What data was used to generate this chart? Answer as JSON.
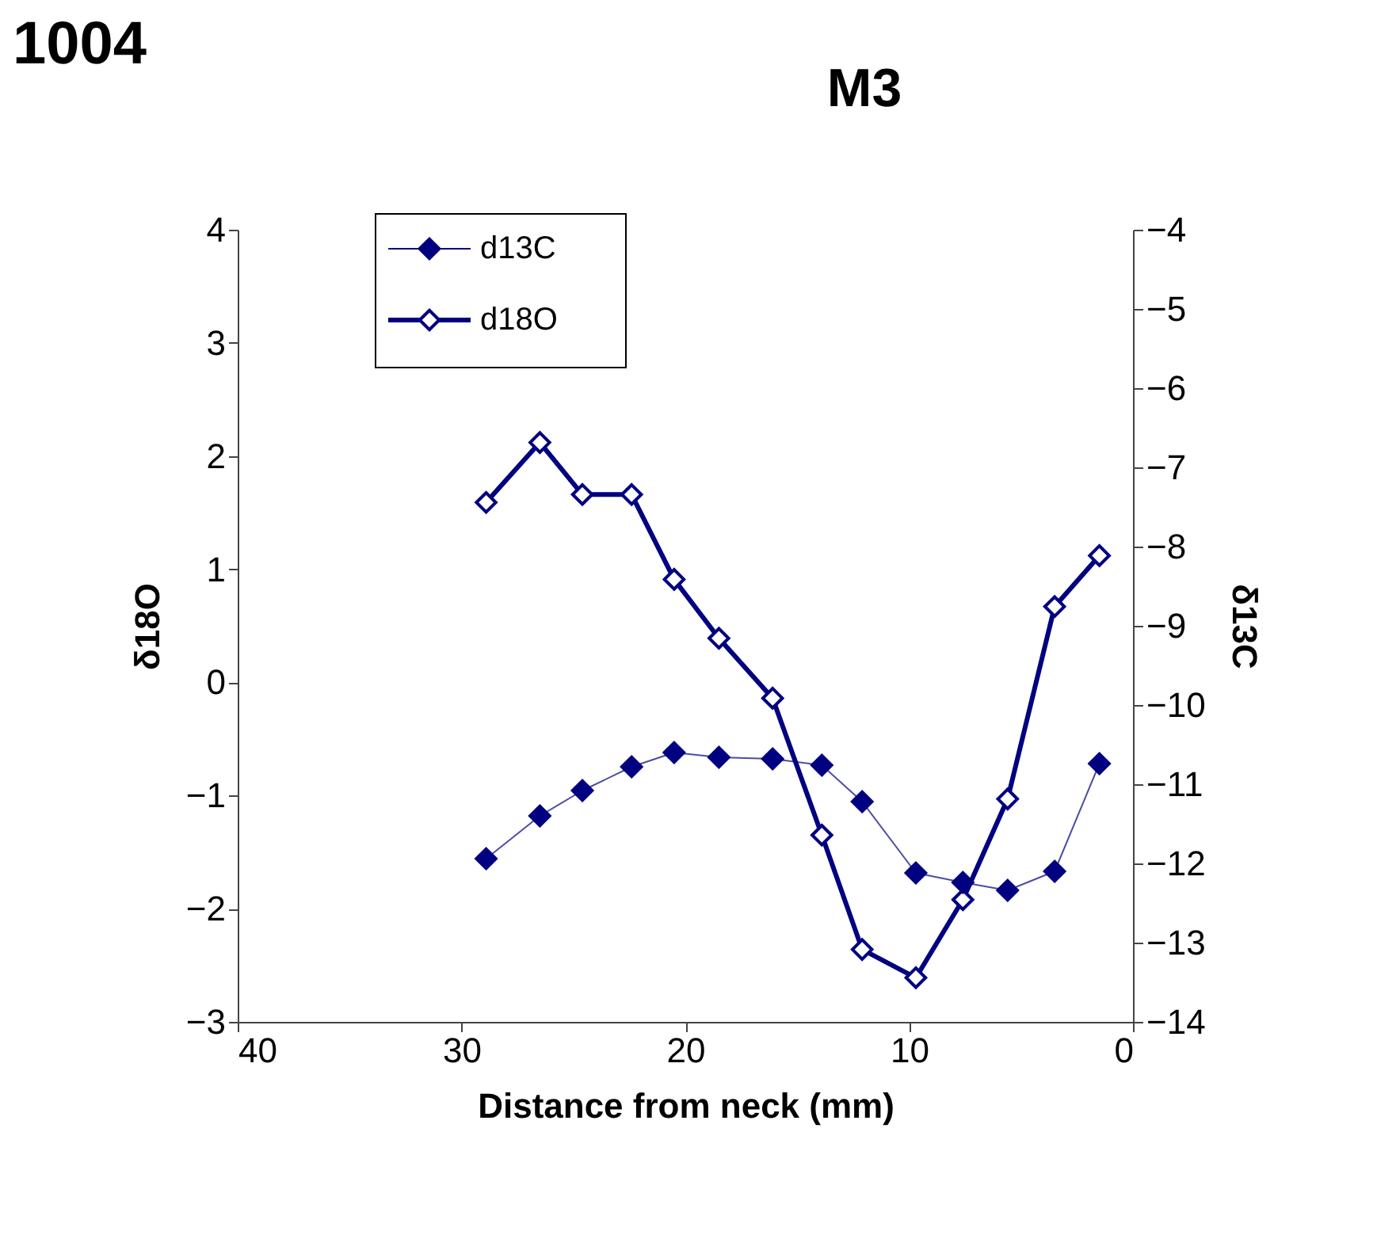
{
  "chart_data": {
    "type": "line",
    "title": "M3",
    "annotations": [
      "1004"
    ],
    "xlabel": "Distance from neck (mm)",
    "ylabel": "δ18O",
    "y2label": "δ13C",
    "xlim": [
      40,
      0
    ],
    "xticks": [
      40,
      30,
      20,
      10,
      0
    ],
    "ylim": [
      -3,
      4
    ],
    "yticks": [
      -3,
      -2,
      -1,
      0,
      1,
      2,
      3,
      4
    ],
    "y2lim": [
      -14,
      -4
    ],
    "y2ticks": [
      -14,
      -13,
      -12,
      -11,
      -10,
      -9,
      -8,
      -7,
      -6,
      -5,
      -4
    ],
    "x": [
      28.9,
      26.5,
      24.6,
      22.4,
      20.5,
      18.5,
      16.1,
      13.9,
      12.1,
      9.7,
      7.6,
      5.6,
      3.5,
      1.5
    ],
    "series": [
      {
        "name": "d13C",
        "color": "#000080",
        "axis": "y2",
        "values": [
          -11.94,
          -11.4,
          -11.08,
          -10.78,
          -10.6,
          -10.66,
          -10.68,
          -10.76,
          -11.22,
          -12.12,
          -12.24,
          -12.34,
          -12.1,
          -10.74
        ]
      },
      {
        "name": "d18O",
        "color": "#000080",
        "values": [
          1.59,
          2.12,
          1.66,
          1.66,
          0.91,
          0.39,
          -0.14,
          -1.35,
          -2.36,
          -2.61,
          -1.92,
          -1.03,
          0.67,
          1.12
        ]
      }
    ],
    "marker": "diamond",
    "line_style": "solid",
    "grid": false,
    "legend": "top left"
  }
}
